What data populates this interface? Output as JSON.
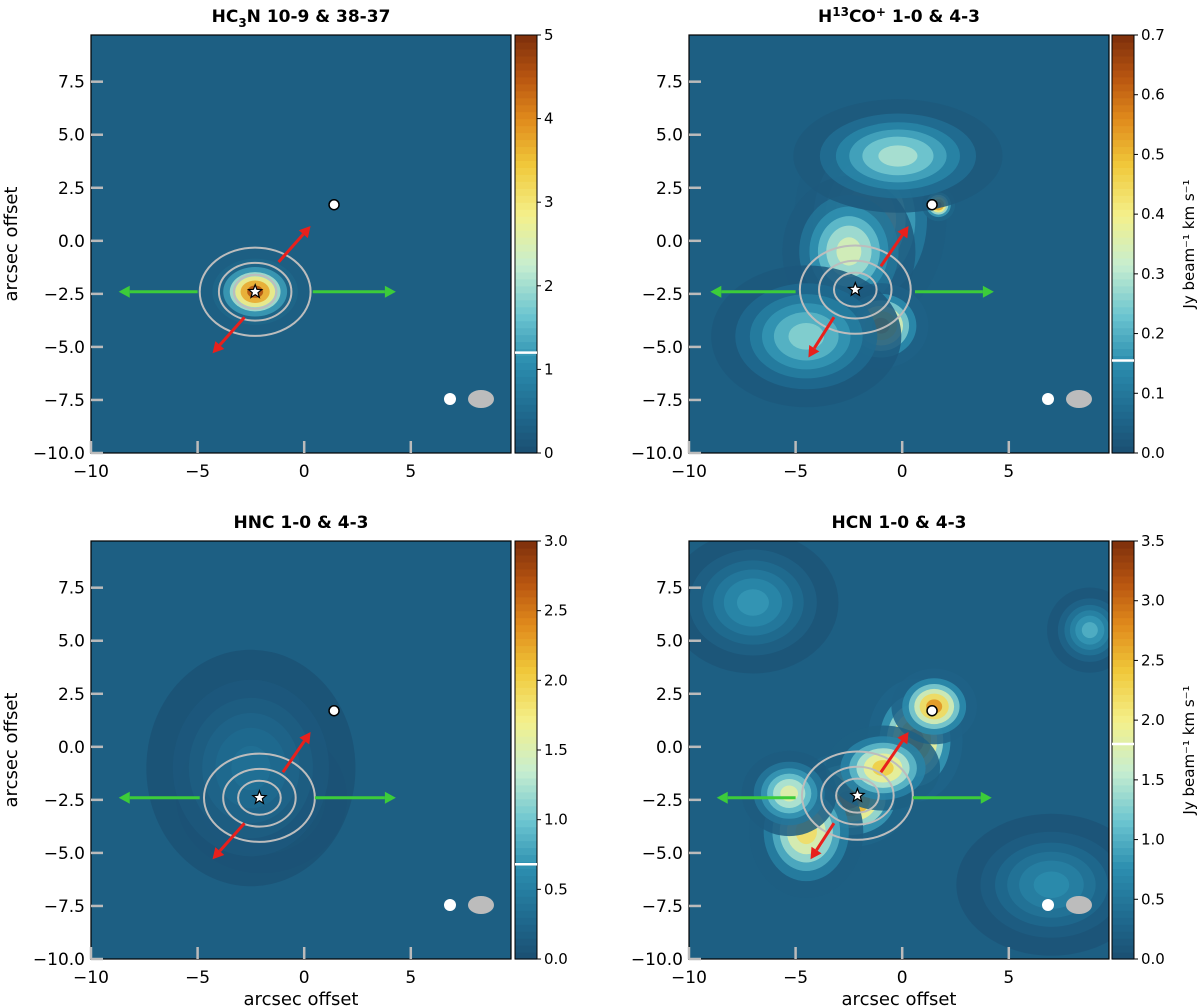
{
  "chart_data": [
    {
      "type": "heatmap",
      "title": "HC₃N 10-9 & 38-37",
      "title_parts": [
        "HC",
        "3",
        "N 10-9 & 38-37"
      ],
      "xlabel": "",
      "ylabel": "arcsec offset",
      "xlim": [
        -10,
        9.7
      ],
      "ylim": [
        -10,
        9.7
      ],
      "xticks": [
        -10,
        -5,
        0,
        5
      ],
      "yticks": [
        -10.0,
        -7.5,
        -5.0,
        -2.5,
        0.0,
        2.5,
        5.0,
        7.5
      ],
      "colorbar": {
        "label": "",
        "min": 0,
        "max": 5,
        "ticks": [
          0,
          1,
          2,
          3,
          4,
          5
        ],
        "marker": 1.2
      },
      "star": [
        -2.3,
        -2.4
      ],
      "source": [
        1.4,
        1.7
      ],
      "outflow_red": [
        [
          -1.2,
          -1.0
        ],
        [
          0.3,
          0.7
        ],
        [
          -2.8,
          -3.6
        ],
        [
          -4.3,
          -5.3
        ]
      ],
      "outflow_green": [
        [
          -5.0,
          -2.4
        ],
        [
          -8.7,
          -2.4
        ],
        [
          0.4,
          -2.4
        ],
        [
          4.3,
          -2.4
        ]
      ],
      "emission": [
        {
          "x": -2.3,
          "y": -2.4,
          "sx": 0.9,
          "sy": 0.7,
          "amp": 5.0
        }
      ]
    },
    {
      "type": "heatmap",
      "title": "H¹³CO⁺ 1-0 & 4-3",
      "title_parts": [
        "H",
        "13",
        "CO",
        "+",
        " 1-0 & 4-3"
      ],
      "xlabel": "",
      "ylabel": "",
      "xlim": [
        -10,
        9.7
      ],
      "ylim": [
        -10,
        9.7
      ],
      "xticks": [
        -10,
        -5,
        0,
        5
      ],
      "yticks": [
        -10.0,
        -7.5,
        -5.0,
        -2.5,
        0.0,
        2.5,
        5.0,
        7.5
      ],
      "colorbar": {
        "label": "Jy beam⁻¹ km s⁻¹",
        "min": 0,
        "max": 0.7,
        "ticks": [
          0.0,
          0.1,
          0.2,
          0.3,
          0.4,
          0.5,
          0.6,
          0.7
        ],
        "marker": 0.155
      },
      "star": [
        -2.2,
        -2.3
      ],
      "source": [
        1.4,
        1.7
      ],
      "outflow_red": [
        [
          -1.0,
          -1.2
        ],
        [
          0.3,
          0.7
        ],
        [
          -3.2,
          -3.6
        ],
        [
          -4.4,
          -5.5
        ]
      ],
      "outflow_green": [
        [
          -5.0,
          -2.4
        ],
        [
          -9.0,
          -2.4
        ],
        [
          0.6,
          -2.4
        ],
        [
          4.3,
          -2.4
        ]
      ],
      "emission": [
        {
          "x": -1.5,
          "y": 1.0,
          "sx": 1.6,
          "sy": 2.2,
          "amp": 0.42
        },
        {
          "x": -2.5,
          "y": -0.5,
          "sx": 1.4,
          "sy": 1.6,
          "amp": 0.38
        },
        {
          "x": -1.0,
          "y": -4.0,
          "sx": 1.0,
          "sy": 0.9,
          "amp": 0.6
        },
        {
          "x": -4.5,
          "y": -4.5,
          "sx": 2.0,
          "sy": 1.5,
          "amp": 0.28
        },
        {
          "x": 1.7,
          "y": 1.7,
          "sx": 0.35,
          "sy": 0.35,
          "amp": 0.7
        },
        {
          "x": -0.2,
          "y": 4.0,
          "sx": 2.2,
          "sy": 1.2,
          "amp": 0.32
        }
      ]
    },
    {
      "type": "heatmap",
      "title": "HNC 1-0 & 4-3",
      "title_parts": [
        "HNC 1-0 & 4-3"
      ],
      "xlabel": "arcsec offset",
      "ylabel": "arcsec offset",
      "xlim": [
        -10,
        9.7
      ],
      "ylim": [
        -10,
        9.7
      ],
      "xticks": [
        -10,
        -5,
        0,
        5
      ],
      "yticks": [
        -10.0,
        -7.5,
        -5.0,
        -2.5,
        0.0,
        2.5,
        5.0,
        7.5
      ],
      "colorbar": {
        "label": "",
        "min": 0,
        "max": 3.0,
        "ticks": [
          0.0,
          0.5,
          1.0,
          1.5,
          2.0,
          2.5,
          3.0
        ],
        "marker": 0.68
      },
      "star": [
        -2.1,
        -2.4
      ],
      "source": [
        1.4,
        1.7
      ],
      "outflow_red": [
        [
          -1.0,
          -1.2
        ],
        [
          0.3,
          0.7
        ],
        [
          -2.8,
          -3.6
        ],
        [
          -4.3,
          -5.3
        ]
      ],
      "outflow_green": [
        [
          -4.9,
          -2.4
        ],
        [
          -8.7,
          -2.4
        ],
        [
          0.5,
          -2.4
        ],
        [
          4.3,
          -2.4
        ]
      ],
      "emission": [
        {
          "x": -3.0,
          "y": -2.6,
          "sx": 0.7,
          "sy": 0.45,
          "amp": 3.0
        },
        {
          "x": -2.0,
          "y": -2.4,
          "sx": 1.8,
          "sy": 1.6,
          "amp": 0.7
        },
        {
          "x": -2.5,
          "y": -1.0,
          "sx": 2.2,
          "sy": 2.5,
          "amp": 0.4
        }
      ]
    },
    {
      "type": "heatmap",
      "title": "HCN 1-0 & 4-3",
      "title_parts": [
        "HCN 1-0 & 4-3"
      ],
      "xlabel": "arcsec offset",
      "ylabel": "",
      "xlim": [
        -10,
        9.7
      ],
      "ylim": [
        -10,
        9.7
      ],
      "xticks": [
        -10,
        -5,
        0,
        5
      ],
      "yticks": [
        -10.0,
        -7.5,
        -5.0,
        -2.5,
        0.0,
        2.5,
        5.0,
        7.5
      ],
      "colorbar": {
        "label": "Jy beam⁻¹ km s⁻¹",
        "min": 0,
        "max": 3.5,
        "ticks": [
          0.5,
          1.0,
          1.5,
          2.0,
          2.5,
          3.0,
          3.5
        ],
        "marker": 1.8,
        "zero_label": "0.0"
      },
      "star": [
        -2.1,
        -2.3
      ],
      "source": [
        1.4,
        1.7
      ],
      "outflow_red": [
        [
          -1.0,
          -1.2
        ],
        [
          0.3,
          0.7
        ],
        [
          -3.2,
          -3.6
        ],
        [
          -4.3,
          -5.3
        ]
      ],
      "outflow_green": [
        [
          -5.0,
          -2.4
        ],
        [
          -8.7,
          -2.4
        ],
        [
          0.5,
          -2.4
        ],
        [
          4.2,
          -2.4
        ]
      ],
      "emission": [
        {
          "x": -2.5,
          "y": -2.5,
          "sx": 1.3,
          "sy": 1.0,
          "amp": 3.4
        },
        {
          "x": 0.6,
          "y": 0.3,
          "sx": 1.0,
          "sy": 1.3,
          "amp": 3.3
        },
        {
          "x": 1.5,
          "y": 1.9,
          "sx": 0.9,
          "sy": 0.8,
          "amp": 3.0
        },
        {
          "x": -4.5,
          "y": -4.0,
          "sx": 1.2,
          "sy": 1.4,
          "amp": 2.4
        },
        {
          "x": -5.3,
          "y": -2.2,
          "sx": 1.0,
          "sy": 0.9,
          "amp": 2.0
        },
        {
          "x": -0.9,
          "y": -1.0,
          "sx": 1.2,
          "sy": 0.9,
          "amp": 2.6
        },
        {
          "x": -7.0,
          "y": 6.8,
          "sx": 1.8,
          "sy": 1.5,
          "amp": 0.9
        },
        {
          "x": 7.0,
          "y": -6.5,
          "sx": 2.0,
          "sy": 1.5,
          "amp": 0.8
        },
        {
          "x": 8.8,
          "y": 5.5,
          "sx": 0.9,
          "sy": 0.9,
          "amp": 1.1
        }
      ]
    }
  ]
}
